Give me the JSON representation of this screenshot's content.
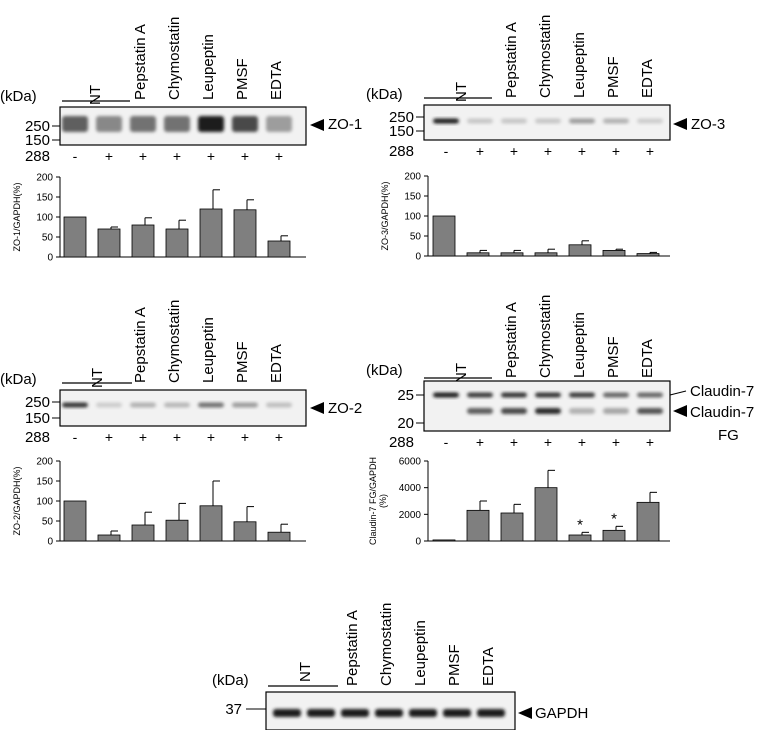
{
  "lanes": [
    "NT",
    "Pepstatin A",
    "Chymostatin",
    "Leupeptin",
    "PMSF",
    "EDTA"
  ],
  "kda_label": "(kDa)",
  "row288_label": "288",
  "signs": [
    "-",
    "+",
    "+",
    "+",
    "+",
    "+",
    "+"
  ],
  "panels": [
    {
      "id": "zo1",
      "protein_labels": [
        "ZO-1"
      ],
      "markers": [
        "250",
        "150"
      ],
      "chart_data": {
        "type": "bar",
        "ylabel": "ZO-1/GAPDH(%)",
        "ylim": [
          0,
          200
        ],
        "yticks": [
          "0",
          "50",
          "100",
          "150",
          "200"
        ],
        "values": [
          100,
          70,
          80,
          70,
          120,
          118,
          40
        ],
        "errors": [
          0,
          5,
          18,
          22,
          48,
          25,
          13
        ],
        "stars": [
          "",
          "",
          "",
          "",
          "",
          "",
          ""
        ]
      }
    },
    {
      "id": "zo3",
      "protein_labels": [
        "ZO-3"
      ],
      "markers": [
        "250",
        "150"
      ],
      "chart_data": {
        "type": "bar",
        "ylabel": "ZO-3/GAPDH(%)",
        "ylim": [
          0,
          200
        ],
        "yticks": [
          "0",
          "50",
          "100",
          "150",
          "200"
        ],
        "values": [
          100,
          8,
          8,
          8,
          28,
          14,
          6
        ],
        "errors": [
          0,
          6,
          6,
          9,
          10,
          3,
          3
        ],
        "stars": [
          "",
          "",
          "",
          "",
          "",
          "",
          ""
        ]
      }
    },
    {
      "id": "zo2",
      "protein_labels": [
        "ZO-2"
      ],
      "markers": [
        "250",
        "150"
      ],
      "chart_data": {
        "type": "bar",
        "ylabel": "ZO-2/GAPDH(%)",
        "ylim": [
          0,
          200
        ],
        "yticks": [
          "0",
          "50",
          "100",
          "150",
          "200"
        ],
        "values": [
          100,
          15,
          40,
          52,
          88,
          48,
          22
        ],
        "errors": [
          0,
          10,
          32,
          42,
          62,
          38,
          20
        ],
        "stars": [
          "",
          "",
          "",
          "",
          "",
          "",
          ""
        ]
      }
    },
    {
      "id": "cld7",
      "protein_labels": [
        "Claudin-7",
        "Claudin-7",
        "FG"
      ],
      "markers": [
        "25",
        "20"
      ],
      "chart_data": {
        "type": "bar",
        "ylabel": "Claudin-7 FG/GAPDH",
        "ylabel2": "(%)",
        "ylim": [
          0,
          6000
        ],
        "yticks": [
          "0",
          "2000",
          "4000",
          "6000"
        ],
        "values": [
          80,
          2300,
          2100,
          4000,
          450,
          800,
          2900
        ],
        "errors": [
          0,
          700,
          650,
          1300,
          200,
          300,
          750
        ],
        "stars": [
          "",
          "",
          "",
          "",
          "*",
          "*",
          ""
        ]
      }
    }
  ],
  "gapdh": {
    "protein_label": "GAPDH",
    "marker": "37"
  }
}
